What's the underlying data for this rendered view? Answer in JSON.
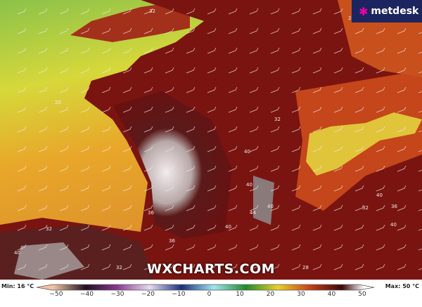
{
  "logo": {
    "brand": "metdesk",
    "icon": "asterisk-flower-icon"
  },
  "watermark": "WXCHARTS.COM",
  "contour_labels": [
    "32",
    "28",
    "20",
    "40",
    "36",
    "40",
    "44",
    "40",
    "32",
    "40",
    "40",
    "36",
    "32",
    "28",
    "40",
    "32",
    "36",
    "40",
    "32"
  ],
  "colorbar": {
    "min_label": "Min: 16 °C",
    "max_label": "Max: 50 °C",
    "ticks": [
      "−50",
      "−40",
      "−30",
      "−20",
      "−10",
      "0",
      "10",
      "20",
      "30",
      "40",
      "50"
    ],
    "unit": "°C",
    "colors": {
      "-50": "#f0c2a2",
      "-40": "#201020",
      "-30": "#8a3a90",
      "-20": "#e6dcef",
      "-10": "#1a2f7a",
      "0": "#a0e6ef",
      "10": "#1f8a2a",
      "20": "#e8d22a",
      "30": "#c8401a",
      "40": "#3a0808",
      "50": "#ffffff"
    }
  }
}
